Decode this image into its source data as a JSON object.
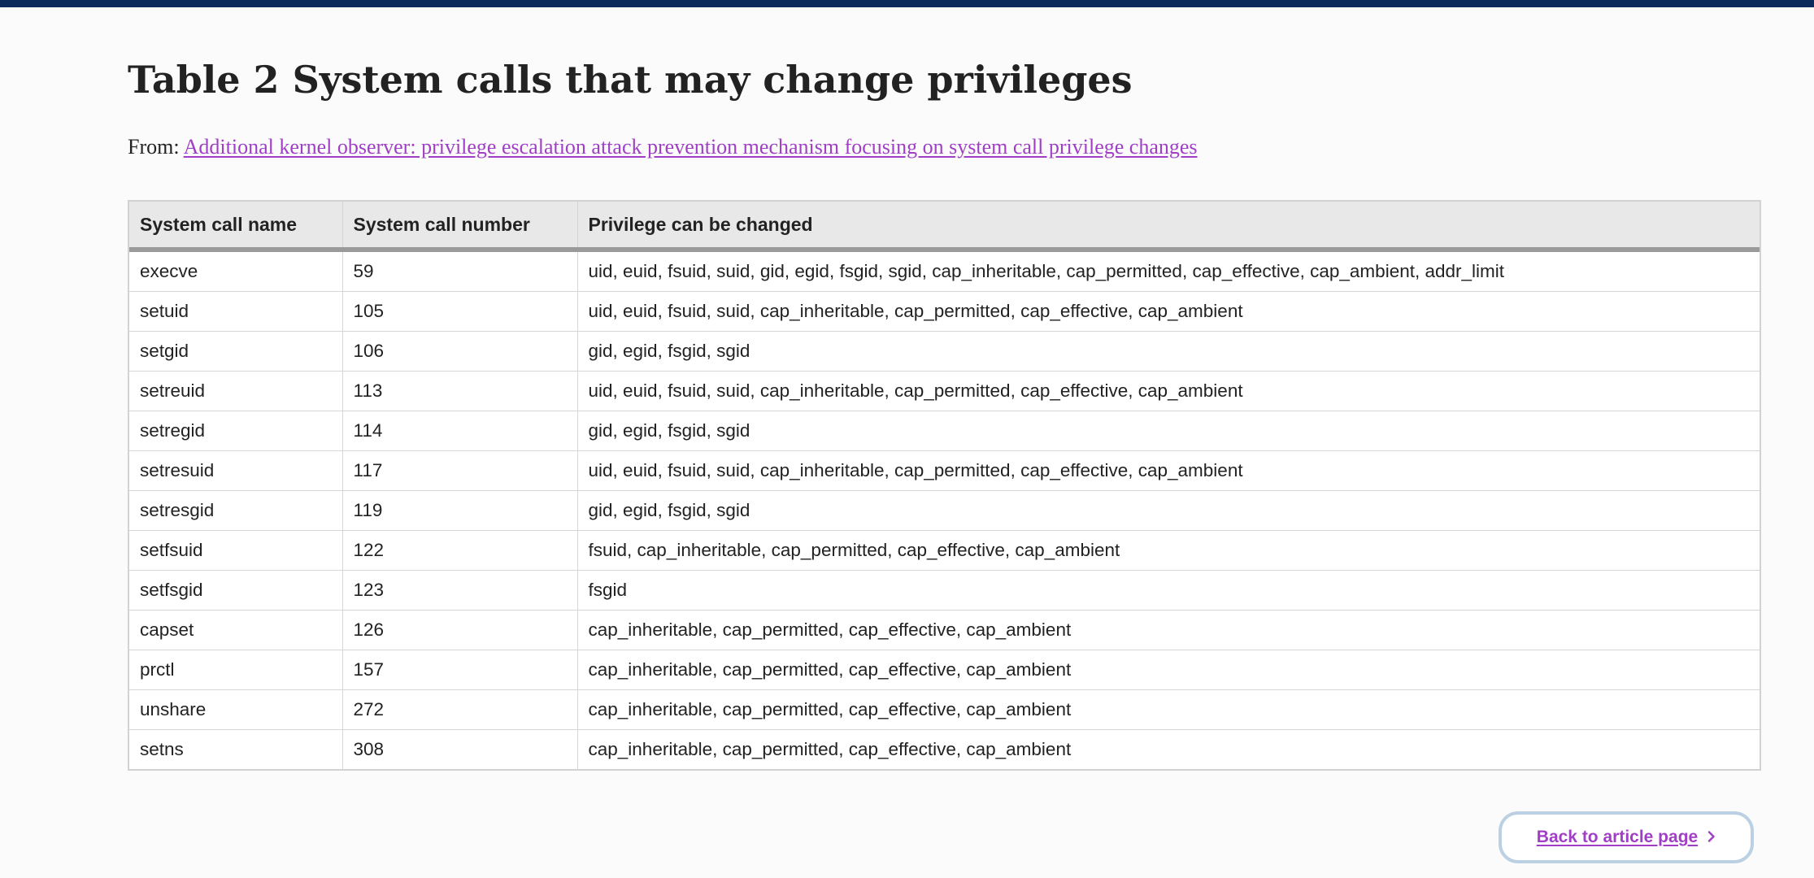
{
  "page": {
    "title": "Table 2 System calls that may change privileges",
    "from_label": "From:",
    "source_link": "Additional kernel observer: privilege escalation attack prevention mechanism focusing on system call privilege changes"
  },
  "table": {
    "headers": [
      "System call name",
      "System call number",
      "Privilege can be changed"
    ],
    "rows": [
      [
        "execve",
        "59",
        "uid, euid, fsuid, suid, gid, egid, fsgid, sgid, cap_inheritable, cap_permitted, cap_effective, cap_ambient, addr_limit"
      ],
      [
        "setuid",
        "105",
        "uid, euid, fsuid, suid, cap_inheritable, cap_permitted, cap_effective, cap_ambient"
      ],
      [
        "setgid",
        "106",
        "gid, egid, fsgid, sgid"
      ],
      [
        "setreuid",
        "113",
        "uid, euid, fsuid, suid, cap_inheritable, cap_permitted, cap_effective, cap_ambient"
      ],
      [
        "setregid",
        "114",
        "gid, egid, fsgid, sgid"
      ],
      [
        "setresuid",
        "117",
        "uid, euid, fsuid, suid, cap_inheritable, cap_permitted, cap_effective, cap_ambient"
      ],
      [
        "setresgid",
        "119",
        "gid, egid, fsgid, sgid"
      ],
      [
        "setfsuid",
        "122",
        "fsuid, cap_inheritable, cap_permitted, cap_effective, cap_ambient"
      ],
      [
        "setfsgid",
        "123",
        "fsgid"
      ],
      [
        "capset",
        "126",
        "cap_inheritable, cap_permitted, cap_effective, cap_ambient"
      ],
      [
        "prctl",
        "157",
        "cap_inheritable, cap_permitted, cap_effective, cap_ambient"
      ],
      [
        "unshare",
        "272",
        "cap_inheritable, cap_permitted, cap_effective, cap_ambient"
      ],
      [
        "setns",
        "308",
        "cap_inheritable, cap_permitted, cap_effective, cap_ambient"
      ]
    ]
  },
  "back_button": {
    "label": "Back to article page",
    "icon": "chevron-right-icon"
  },
  "colors": {
    "top_bar": "#0c2a5b",
    "link": "#a03fc6",
    "button_border": "#bcd0e4",
    "header_bg": "#e8e8e8"
  }
}
